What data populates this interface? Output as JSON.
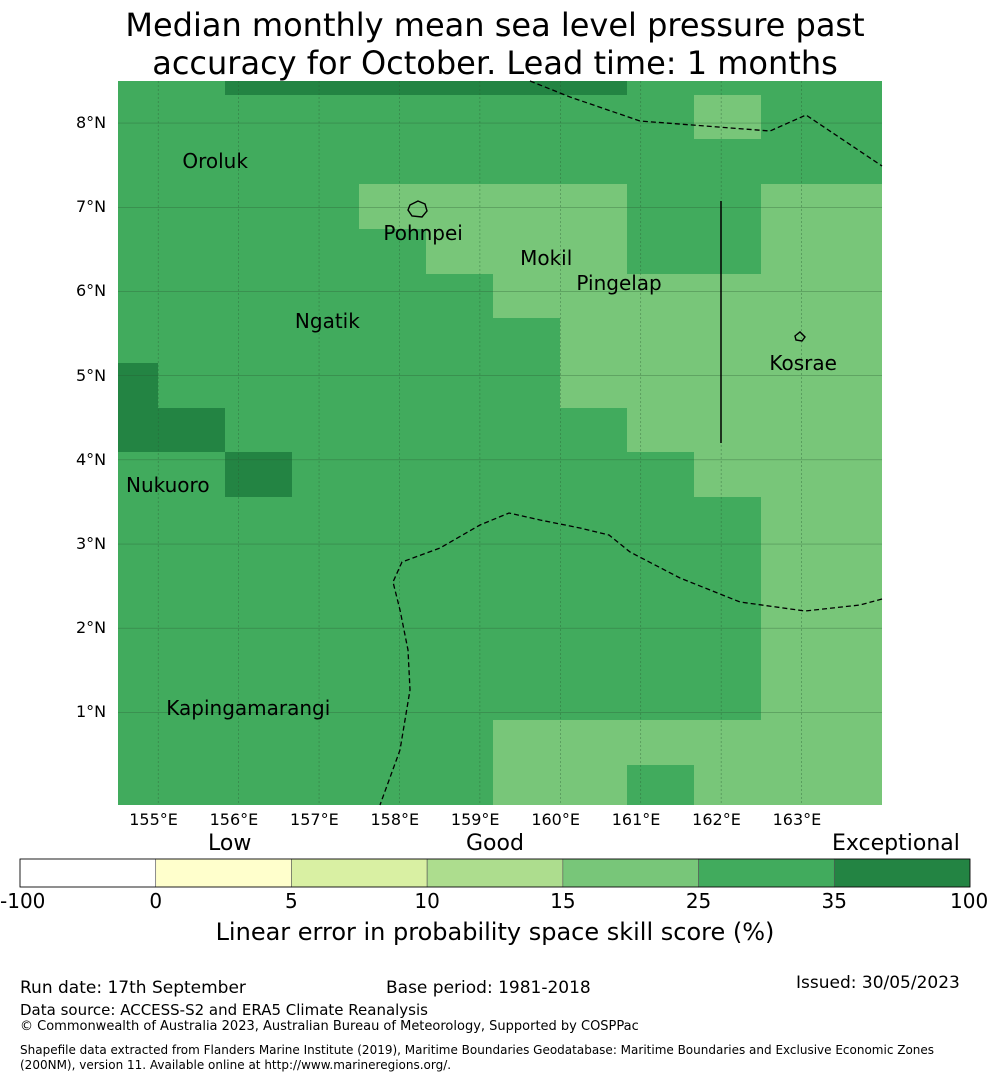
{
  "title_line1": "Median monthly mean sea level pressure past",
  "title_line2": "accuracy for October. Lead time: 1 months",
  "map": {
    "lon_range": [
      154.5,
      164.0
    ],
    "lat_range": [
      -0.1,
      8.5
    ],
    "lon_ticks": [
      155,
      156,
      157,
      158,
      159,
      160,
      161,
      162,
      163
    ],
    "lon_tick_labels": [
      "155°E",
      "156°E",
      "157°E",
      "158°E",
      "159°E",
      "160°E",
      "161°E",
      "162°E",
      "163°E"
    ],
    "lat_ticks": [
      1,
      2,
      3,
      4,
      5,
      6,
      7,
      8
    ],
    "lat_tick_labels": [
      "1°N",
      "2°N",
      "3°N",
      "4°N",
      "5°N",
      "6°N",
      "7°N",
      "8°N"
    ],
    "class_colors": {
      "c15": "#78c679",
      "c25": "#41ab5d",
      "c35": "#238443"
    },
    "places": [
      {
        "name": "Oroluk",
        "lon": 155.3,
        "lat": 7.55
      },
      {
        "name": "Pohnpei",
        "lon": 157.8,
        "lat": 6.7
      },
      {
        "name": "Mokil",
        "lon": 159.5,
        "lat": 6.4
      },
      {
        "name": "Pingelap",
        "lon": 160.2,
        "lat": 6.1
      },
      {
        "name": "Ngatik",
        "lon": 156.7,
        "lat": 5.65
      },
      {
        "name": "Kosrae",
        "lon": 162.6,
        "lat": 5.15
      },
      {
        "name": "Nukuoro",
        "lon": 154.6,
        "lat": 3.7
      },
      {
        "name": "Kapingamarangi",
        "lon": 155.1,
        "lat": 1.05
      }
    ]
  },
  "colorbar": {
    "level_low": "Low",
    "level_good": "Good",
    "level_exceptional": "Exceptional",
    "bins": [
      {
        "from": -100,
        "to": 0,
        "color": "#ffffff"
      },
      {
        "from": 0,
        "to": 5,
        "color": "#ffffcc"
      },
      {
        "from": 5,
        "to": 10,
        "color": "#d9f0a3"
      },
      {
        "from": 10,
        "to": 15,
        "color": "#addd8e"
      },
      {
        "from": 15,
        "to": 25,
        "color": "#78c679"
      },
      {
        "from": 25,
        "to": 35,
        "color": "#41ab5d"
      },
      {
        "from": 35,
        "to": 100,
        "color": "#238443"
      }
    ],
    "tick_labels": [
      "-100",
      "0",
      "5",
      "10",
      "15",
      "25",
      "35",
      "100"
    ],
    "title": "Linear error in probability space skill score (%)"
  },
  "footer": {
    "run_date": "Run date: 17th September",
    "base_period": "Base period: 1981-2018",
    "issued": "Issued: 30/05/2023",
    "data_source": "Data source: ACCESS-S2 and ERA5 Climate Reanalysis",
    "copyright": "© Commonwealth of Australia 2023, Australian Bureau of Meteorology, Supported by COSPPac",
    "shapefile_line1": "Shapefile data extracted from Flanders Marine Institute (2019), Maritime Boundaries Geodatabase: Maritime Boundaries and Exclusive Economic Zones",
    "shapefile_line2": "(200NM), version 11. Available online at http://www.marineregions.org/."
  }
}
